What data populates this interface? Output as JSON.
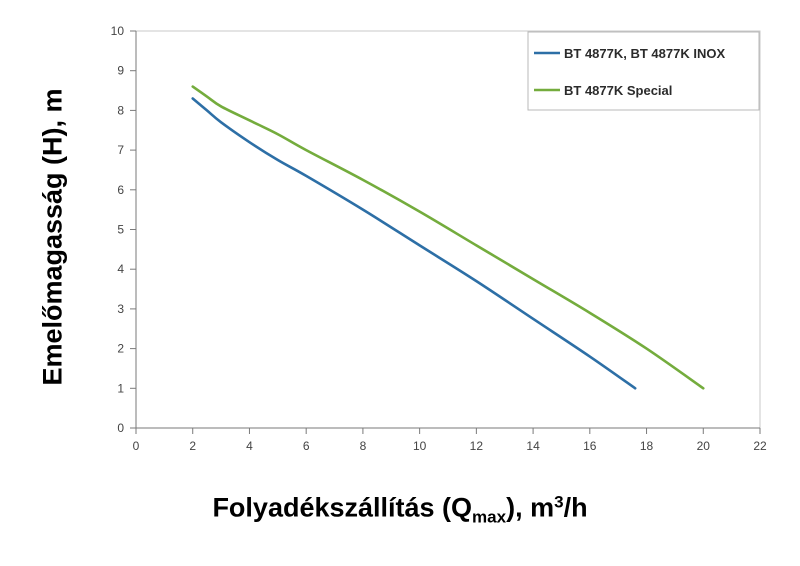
{
  "chart_data": {
    "type": "line",
    "xlabel": {
      "prefix": "Folyadékszállítás (Q",
      "sub": "max",
      "middle": "), m",
      "sup": "3",
      "suffix": "/h"
    },
    "ylabel": "Emelőmagasság (H), m",
    "xlim": [
      0,
      22
    ],
    "ylim": [
      0,
      10
    ],
    "x_ticks": [
      "0",
      "2",
      "4",
      "6",
      "8",
      "10",
      "12",
      "14",
      "16",
      "18",
      "20",
      "22"
    ],
    "y_ticks": [
      "0",
      "1",
      "2",
      "3",
      "4",
      "5",
      "6",
      "7",
      "8",
      "9",
      "10"
    ],
    "grid": false,
    "legend_position": "top-right",
    "series": [
      {
        "name": "BT 4877K, BT 4877K INOX",
        "color": "#2d6fa6",
        "x": [
          2,
          2.5,
          3,
          4,
          5,
          6,
          8,
          10,
          12,
          14,
          16,
          17.6
        ],
        "y": [
          8.3,
          8.0,
          7.7,
          7.2,
          6.75,
          6.35,
          5.5,
          4.6,
          3.7,
          2.75,
          1.8,
          1.0
        ]
      },
      {
        "name": "BT 4877K Special",
        "color": "#74ac3d",
        "x": [
          2,
          2.5,
          3,
          4,
          5,
          6,
          8,
          10,
          12,
          14,
          16,
          18,
          20
        ],
        "y": [
          8.6,
          8.35,
          8.1,
          7.75,
          7.4,
          7.0,
          6.25,
          5.45,
          4.6,
          3.75,
          2.9,
          2.0,
          1.0
        ]
      }
    ]
  }
}
